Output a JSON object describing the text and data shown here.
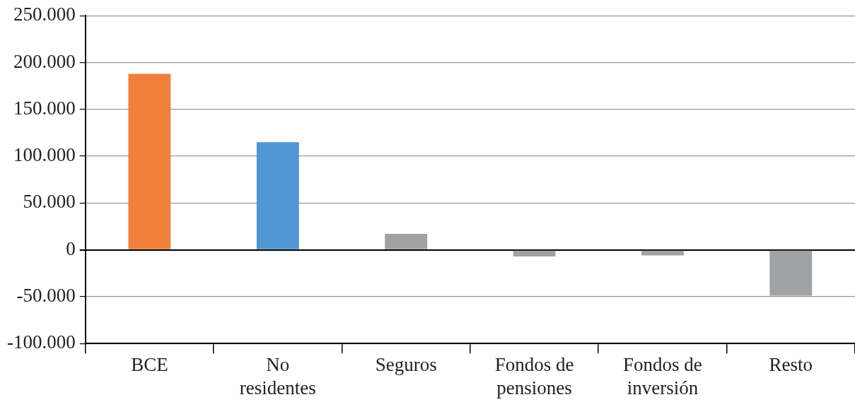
{
  "chart_data": {
    "type": "bar",
    "categories": [
      "BCE",
      "No residentes",
      "Seguros",
      "Fondos de pensiones",
      "Fondos de inversión",
      "Resto"
    ],
    "values": [
      188000,
      115000,
      17000,
      -7000,
      -6000,
      -49000
    ],
    "colors": [
      "#f0803c",
      "#5096d3",
      "#a0a2a6",
      "#a0a2a6",
      "#a0a2a6",
      "#a0a2a6"
    ],
    "ylim": [
      -100000,
      250000
    ],
    "yticks": [
      {
        "value": -100000,
        "label": "-100.000"
      },
      {
        "value": -50000,
        "label": "-50.000"
      },
      {
        "value": 0,
        "label": "0"
      },
      {
        "value": 50000,
        "label": "50.000"
      },
      {
        "value": 100000,
        "label": "100.000"
      },
      {
        "value": 150000,
        "label": "150.000"
      },
      {
        "value": 200000,
        "label": "200.000"
      },
      {
        "value": 250000,
        "label": "250.000"
      }
    ],
    "grid": "y"
  }
}
